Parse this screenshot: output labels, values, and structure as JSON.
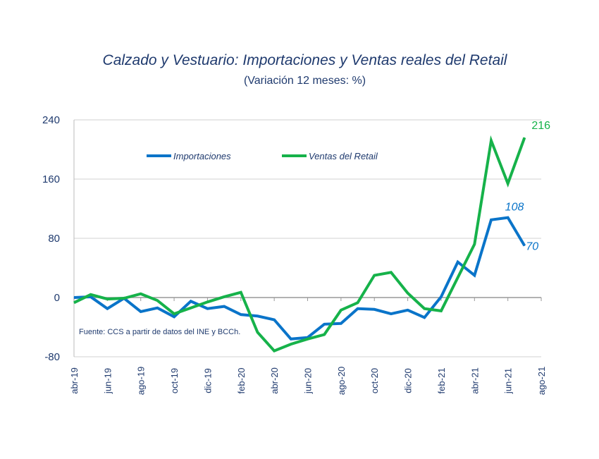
{
  "chart_data": {
    "type": "line",
    "title": "Calzado y Vestuario: Importaciones  y  Ventas reales del Retail",
    "subtitle": "(Variación 12 meses: %)",
    "note": "Fuente: CCS a partir de datos del INE y BCCh.",
    "ylim": [
      -80,
      240
    ],
    "yticks": [
      -80,
      0,
      80,
      160,
      240
    ],
    "xticklabels": [
      "abr-19",
      "jun-19",
      "ago-19",
      "oct-19",
      "dic-19",
      "feb-20",
      "abr-20",
      "jun-20",
      "ago-20",
      "oct-20",
      "dic-20",
      "feb-21",
      "abr-21",
      "jun-21",
      "ago-21"
    ],
    "x": [
      "abr-19",
      "may-19",
      "jun-19",
      "jul-19",
      "ago-19",
      "sep-19",
      "oct-19",
      "nov-19",
      "dic-19",
      "ene-20",
      "feb-20",
      "mar-20",
      "abr-20",
      "may-20",
      "jun-20",
      "jul-20",
      "ago-20",
      "sep-20",
      "oct-20",
      "nov-20",
      "dic-20",
      "ene-21",
      "feb-21",
      "mar-21",
      "abr-21",
      "may-21",
      "jun-21",
      "jul-21"
    ],
    "grid": "horizontal",
    "legend": "top-left",
    "series": [
      {
        "name": "Importaciones",
        "color": "#0a74c9",
        "values": [
          0,
          1,
          -15,
          -1,
          -19,
          -14,
          -26,
          -5,
          -15,
          -12,
          -23,
          -25,
          -30,
          -56,
          -54,
          -36,
          -35,
          -15,
          -16,
          -22,
          -17,
          -27,
          1,
          48,
          30,
          105,
          108,
          70
        ],
        "labels": [
          {
            "index": 26,
            "text": "108"
          },
          {
            "index": 27,
            "text": "70"
          }
        ]
      },
      {
        "name": "Ventas del Retail",
        "color": "#16b24a",
        "values": [
          -7,
          4,
          -2,
          -1,
          5,
          -4,
          -22,
          -14,
          -6,
          1,
          7,
          -47,
          -72,
          -63,
          -56,
          -50,
          -17,
          -7,
          30,
          34,
          6,
          -15,
          -18,
          27,
          72,
          212,
          154,
          216
        ],
        "labels": [
          {
            "index": 27,
            "text": "216"
          }
        ]
      }
    ]
  }
}
